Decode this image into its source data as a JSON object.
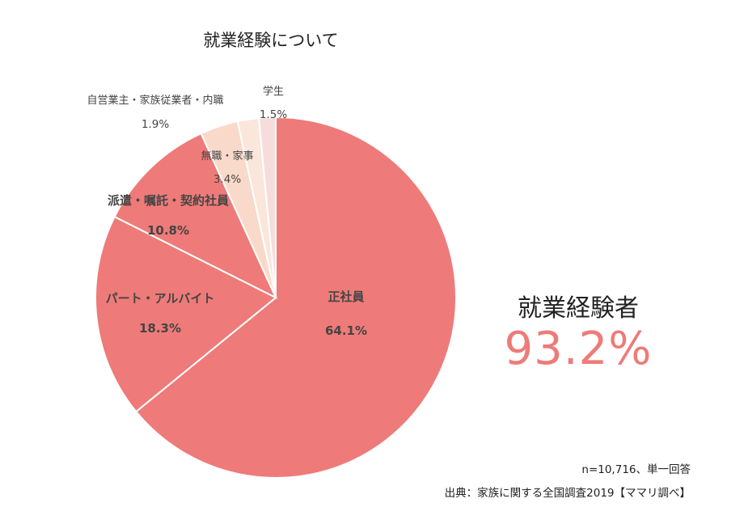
{
  "chart_data": {
    "type": "pie",
    "title": "就業経験について",
    "slices": [
      {
        "label": "正社員",
        "value": 64.1,
        "value_label": "64.1%",
        "color": "#ee7b79"
      },
      {
        "label": "パート・アルバイト",
        "value": 18.3,
        "value_label": "18.3%",
        "color": "#ee7b79"
      },
      {
        "label": "派遣・嘱託・契約社員",
        "value": 10.8,
        "value_label": "10.8%",
        "color": "#ee7b79"
      },
      {
        "label": "無職・家事",
        "value": 3.4,
        "value_label": "3.4%",
        "color": "#f9d9c9"
      },
      {
        "label": "自営業主・家族従業者・内職",
        "value": 1.9,
        "value_label": "1.9%",
        "color": "#fbe6db"
      },
      {
        "label": "学生",
        "value": 1.5,
        "value_label": "1.5%",
        "color": "#f7dcdc"
      }
    ],
    "start": "12 o'clock",
    "direction": "clockwise"
  },
  "highlight": {
    "label": "就業経験者",
    "value": "93.2%",
    "color": "#ee7b79"
  },
  "footnotes": {
    "sample": "n=10,716、単一回答",
    "source": "出典：家族に関する全国調査2019【ママリ調べ】"
  }
}
